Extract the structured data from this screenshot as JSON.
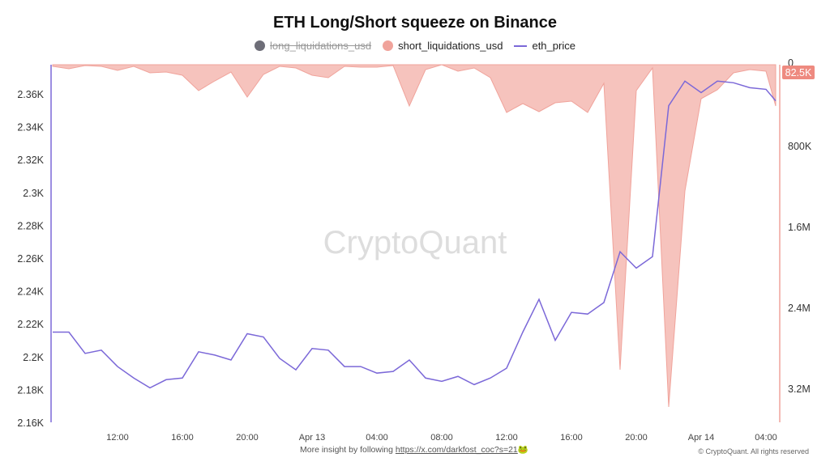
{
  "chart_data": {
    "type": "line+area",
    "title": "ETH Long/Short squeeze on Binance",
    "legend": [
      {
        "name": "long_liquidations_usd",
        "color": "#6e6e78",
        "hidden": true
      },
      {
        "name": "short_liquidations_usd",
        "color": "#f0a39b"
      },
      {
        "name": "eth_price",
        "color": "#7b68d8"
      }
    ],
    "x_ticks": [
      "12:00",
      "16:00",
      "20:00",
      "Apr 13",
      "04:00",
      "08:00",
      "12:00",
      "16:00",
      "20:00",
      "Apr 14",
      "04:00"
    ],
    "left_axis": {
      "ticks": [
        "2.16K",
        "2.18K",
        "2.2K",
        "2.22K",
        "2.24K",
        "2.26K",
        "2.28K",
        "2.3K",
        "2.32K",
        "2.34K",
        "2.36K"
      ],
      "range": [
        2160,
        2378
      ]
    },
    "right_axis": {
      "ticks": [
        "0",
        "800K",
        "1.6M",
        "2.4M",
        "3.2M"
      ],
      "range": [
        0,
        3536000
      ],
      "inverted": true,
      "current_label": "82.5K"
    },
    "x": [
      "Apr 12 08:00",
      "Apr 12 09:00",
      "Apr 12 10:00",
      "Apr 12 11:00",
      "Apr 12 12:00",
      "Apr 12 13:00",
      "Apr 12 14:00",
      "Apr 12 15:00",
      "Apr 12 16:00",
      "Apr 12 17:00",
      "Apr 12 18:00",
      "Apr 12 19:00",
      "Apr 12 20:00",
      "Apr 12 21:00",
      "Apr 12 22:00",
      "Apr 12 23:00",
      "Apr 13 00:00",
      "Apr 13 01:00",
      "Apr 13 02:00",
      "Apr 13 03:00",
      "Apr 13 04:00",
      "Apr 13 05:00",
      "Apr 13 06:00",
      "Apr 13 07:00",
      "Apr 13 08:00",
      "Apr 13 09:00",
      "Apr 13 10:00",
      "Apr 13 11:00",
      "Apr 13 12:00",
      "Apr 13 13:00",
      "Apr 13 14:00",
      "Apr 13 15:00",
      "Apr 13 16:00",
      "Apr 13 17:00",
      "Apr 13 18:00",
      "Apr 13 19:00",
      "Apr 13 20:00",
      "Apr 13 21:00",
      "Apr 13 22:00",
      "Apr 13 23:00",
      "Apr 14 00:00",
      "Apr 14 01:00",
      "Apr 14 02:00",
      "Apr 14 03:00",
      "Apr 14 04:00",
      "Apr 14 04:36"
    ],
    "series": [
      {
        "name": "eth_price",
        "values": [
          2215,
          2215,
          2202,
          2204,
          2194,
          2187,
          2181,
          2186,
          2187,
          2203,
          2201,
          2198,
          2214,
          2212,
          2199,
          2192,
          2205,
          2204,
          2194,
          2194,
          2190,
          2191,
          2198,
          2187,
          2185,
          2188,
          2183,
          2187,
          2193,
          2215,
          2235,
          2210,
          2227,
          2226,
          2233,
          2264,
          2254,
          2261,
          2353,
          2368,
          2361,
          2368,
          2367,
          2364,
          2363,
          2356
        ]
      },
      {
        "name": "short_liquidations_usd",
        "values": [
          16000,
          40000,
          8000,
          16000,
          56000,
          16000,
          80000,
          72000,
          104000,
          256000,
          160000,
          72000,
          320000,
          96000,
          16000,
          32000,
          104000,
          128000,
          16000,
          24000,
          24000,
          8000,
          408000,
          48000,
          0,
          64000,
          32000,
          128000,
          472000,
          384000,
          464000,
          376000,
          360000,
          472000,
          184000,
          3016000,
          256000,
          32000,
          3384000,
          1248000,
          336000,
          248000,
          80000,
          48000,
          64000,
          408000
        ]
      }
    ]
  },
  "footer": {
    "text": "More insight by following ",
    "link": "https://x.com/darkfost_coc?s=21",
    "emoji": "🐸",
    "copyright": "© CryptoQuant. All rights reserved"
  },
  "watermark": "CryptoQuant"
}
